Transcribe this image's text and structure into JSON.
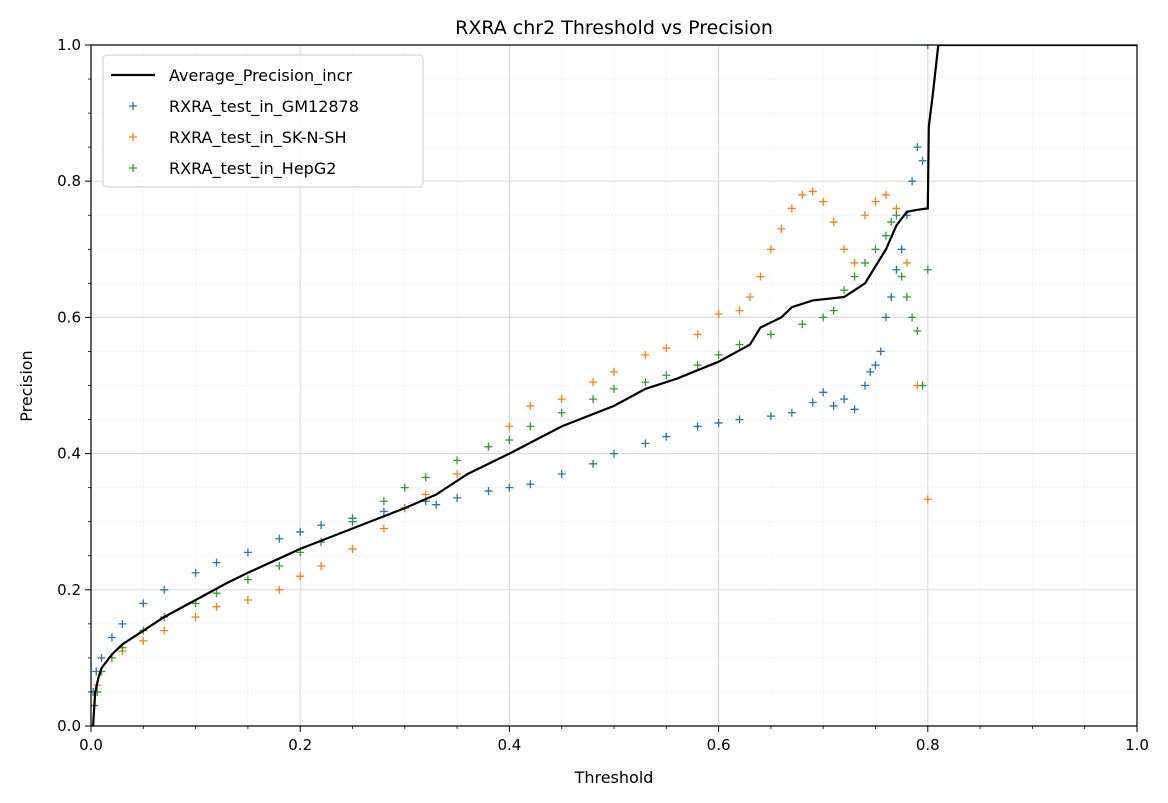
{
  "chart_data": {
    "type": "scatter",
    "title": "RXRA chr2 Threshold vs Precision",
    "xlabel": "Threshold",
    "ylabel": "Precision",
    "xlim": [
      0.0,
      1.0
    ],
    "ylim": [
      0.0,
      1.0
    ],
    "xticks": [
      "0.0",
      "0.2",
      "0.4",
      "0.6",
      "0.8",
      "1.0"
    ],
    "yticks": [
      "0.0",
      "0.2",
      "0.4",
      "0.6",
      "0.8",
      "1.0"
    ],
    "grid": true,
    "minor_grid": true,
    "legend_position": "top-left",
    "line_series": {
      "name": "Average_Precision_incr",
      "color": "#000000",
      "marker": "line",
      "x": [
        0.002,
        0.004,
        0.007,
        0.01,
        0.02,
        0.03,
        0.05,
        0.07,
        0.1,
        0.13,
        0.15,
        0.2,
        0.25,
        0.3,
        0.33,
        0.36,
        0.4,
        0.45,
        0.5,
        0.53,
        0.56,
        0.6,
        0.63,
        0.64,
        0.66,
        0.67,
        0.69,
        0.72,
        0.74,
        0.75,
        0.76,
        0.77,
        0.78,
        0.79,
        0.8,
        0.801,
        0.805,
        0.81,
        0.82,
        1.0
      ],
      "y": [
        0.0,
        0.05,
        0.07,
        0.085,
        0.105,
        0.12,
        0.14,
        0.16,
        0.185,
        0.21,
        0.225,
        0.26,
        0.29,
        0.32,
        0.34,
        0.37,
        0.4,
        0.44,
        0.47,
        0.495,
        0.51,
        0.535,
        0.56,
        0.585,
        0.6,
        0.615,
        0.625,
        0.63,
        0.65,
        0.675,
        0.7,
        0.735,
        0.755,
        0.758,
        0.76,
        0.88,
        0.93,
        1.0,
        1.0,
        1.0
      ]
    },
    "series": [
      {
        "name": "RXRA_test_in_GM12878",
        "color": "#1f77b4",
        "marker": "+",
        "x": [
          0.002,
          0.005,
          0.01,
          0.02,
          0.03,
          0.05,
          0.07,
          0.1,
          0.12,
          0.15,
          0.18,
          0.2,
          0.22,
          0.25,
          0.28,
          0.3,
          0.32,
          0.33,
          0.35,
          0.38,
          0.4,
          0.42,
          0.45,
          0.48,
          0.5,
          0.53,
          0.55,
          0.58,
          0.6,
          0.62,
          0.65,
          0.67,
          0.69,
          0.7,
          0.71,
          0.72,
          0.73,
          0.74,
          0.745,
          0.75,
          0.755,
          0.76,
          0.765,
          0.77,
          0.775,
          0.78,
          0.785,
          0.79,
          0.795,
          0.8
        ],
        "y": [
          0.05,
          0.08,
          0.1,
          0.13,
          0.15,
          0.18,
          0.2,
          0.225,
          0.24,
          0.255,
          0.275,
          0.285,
          0.295,
          0.305,
          0.315,
          0.32,
          0.33,
          0.325,
          0.335,
          0.345,
          0.35,
          0.355,
          0.37,
          0.385,
          0.4,
          0.415,
          0.425,
          0.44,
          0.445,
          0.45,
          0.455,
          0.46,
          0.475,
          0.49,
          0.47,
          0.48,
          0.465,
          0.5,
          0.52,
          0.53,
          0.55,
          0.6,
          0.63,
          0.67,
          0.7,
          0.75,
          0.8,
          0.85,
          0.83,
          1.0
        ]
      },
      {
        "name": "RXRA_test_in_SK-N-SH",
        "color": "#ff7f0e",
        "marker": "+",
        "x": [
          0.003,
          0.006,
          0.01,
          0.02,
          0.03,
          0.05,
          0.07,
          0.1,
          0.12,
          0.15,
          0.18,
          0.2,
          0.22,
          0.25,
          0.28,
          0.3,
          0.32,
          0.35,
          0.38,
          0.4,
          0.42,
          0.45,
          0.48,
          0.5,
          0.53,
          0.55,
          0.58,
          0.6,
          0.62,
          0.63,
          0.64,
          0.65,
          0.66,
          0.67,
          0.68,
          0.69,
          0.7,
          0.71,
          0.72,
          0.73,
          0.74,
          0.75,
          0.76,
          0.77,
          0.78,
          0.79,
          0.8
        ],
        "y": [
          0.03,
          0.06,
          0.08,
          0.1,
          0.11,
          0.125,
          0.14,
          0.16,
          0.175,
          0.185,
          0.2,
          0.22,
          0.235,
          0.26,
          0.29,
          0.32,
          0.34,
          0.37,
          0.41,
          0.44,
          0.47,
          0.48,
          0.505,
          0.52,
          0.545,
          0.555,
          0.575,
          0.605,
          0.61,
          0.63,
          0.66,
          0.7,
          0.73,
          0.76,
          0.78,
          0.785,
          0.77,
          0.74,
          0.7,
          0.68,
          0.75,
          0.77,
          0.78,
          0.76,
          0.68,
          0.5,
          0.333
        ]
      },
      {
        "name": "RXRA_test_in_HepG2",
        "color": "#2ca02c",
        "marker": "+",
        "x": [
          0.003,
          0.006,
          0.01,
          0.02,
          0.03,
          0.05,
          0.07,
          0.1,
          0.12,
          0.15,
          0.18,
          0.2,
          0.22,
          0.25,
          0.28,
          0.3,
          0.32,
          0.35,
          0.38,
          0.4,
          0.42,
          0.45,
          0.48,
          0.5,
          0.53,
          0.55,
          0.58,
          0.6,
          0.62,
          0.65,
          0.68,
          0.7,
          0.71,
          0.72,
          0.73,
          0.74,
          0.75,
          0.76,
          0.765,
          0.77,
          0.775,
          0.78,
          0.785,
          0.79,
          0.795,
          0.8
        ],
        "y": [
          0.03,
          0.05,
          0.08,
          0.1,
          0.115,
          0.14,
          0.16,
          0.18,
          0.195,
          0.215,
          0.235,
          0.255,
          0.27,
          0.3,
          0.33,
          0.35,
          0.365,
          0.39,
          0.41,
          0.42,
          0.44,
          0.46,
          0.48,
          0.495,
          0.505,
          0.515,
          0.53,
          0.545,
          0.56,
          0.575,
          0.59,
          0.6,
          0.61,
          0.64,
          0.66,
          0.68,
          0.7,
          0.72,
          0.74,
          0.75,
          0.66,
          0.63,
          0.6,
          0.58,
          0.5,
          0.67
        ]
      }
    ]
  }
}
